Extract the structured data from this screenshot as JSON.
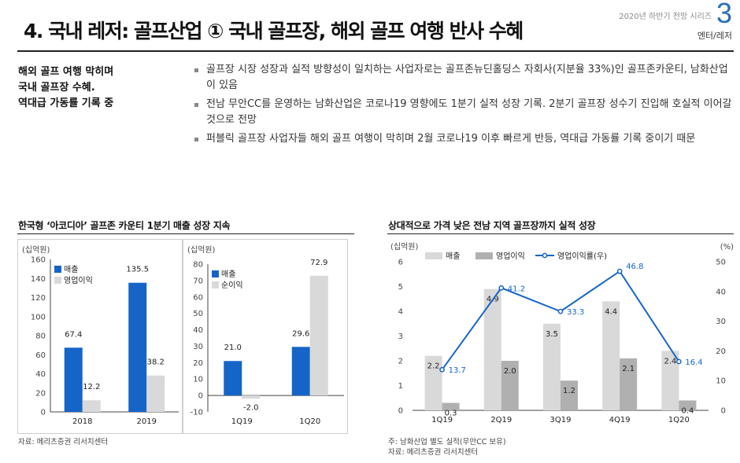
{
  "header": {
    "title": "4. 국내 레저: 골프산업 ① 국내 골프장, 해외 골프 여행 반사 수혜",
    "series": "2020년 하반기 전망 시리즈",
    "page_number": "3",
    "section": "엔터/레저"
  },
  "summary": {
    "lines": [
      "해외 골프 여행 막히며",
      "국내 골프장 수혜.",
      "역대급 가동률 기록 중"
    ]
  },
  "bullets": [
    "골프장 시장 성장과 실적 방향성이 일치하는 사업자로는 골프존뉴딘홀딩스 자회사(지분율 33%)인 골프존카운티, 남화산업이 있음",
    "전남 무안CC를 운영하는 남화산업은 코로나19 영향에도 1분기 실적 성장 기록. 2분기 골프장 성수기 진입해 호실적 이어갈 것으로 전망",
    "퍼블릭 골프장 사업자들 해외 골프 여행이 막히며 2월 코로나19 이후 빠르게 반등, 역대급 가동률 기록 중이기 때문"
  ],
  "left_chart": {
    "title": "한국형 ‘아코디아’ 골프존 카운티 1분기 매출 성장 지속",
    "source": "자료: 메리츠증권 리서치센터"
  },
  "right_chart": {
    "title": "상대적으로 가격 낮은 전남 지역 골프장까지 실적 성장",
    "note": "주: 남화산업 별도 실적(무안CC 보유)",
    "source": "자료: 메리츠증권 리서치센터"
  },
  "colors": {
    "blue": "#1565c8",
    "lightgray": "#d9d9d9",
    "darkgray": "#b0b0b0",
    "accent": "#2a6fb8"
  },
  "chart_data": [
    {
      "type": "bar",
      "ylabel": "(십억원)",
      "ylim": [
        0,
        160
      ],
      "yticks": [
        0,
        20,
        40,
        60,
        80,
        100,
        120,
        140,
        160
      ],
      "categories": [
        "2018",
        "2019"
      ],
      "legend_position": "top-left",
      "series": [
        {
          "name": "매출",
          "values": [
            67.4,
            135.5
          ],
          "labels": [
            "67.4",
            "135.5"
          ]
        },
        {
          "name": "영업이익",
          "values": [
            12.2,
            38.2
          ],
          "labels": [
            "12.2",
            "38.2"
          ]
        }
      ]
    },
    {
      "type": "bar",
      "ylabel": "(십억원)",
      "ylim": [
        -10,
        80
      ],
      "yticks": [
        -10,
        0,
        10,
        20,
        30,
        40,
        50,
        60,
        70,
        80
      ],
      "categories": [
        "1Q19",
        "1Q20"
      ],
      "legend_position": "top-left",
      "series": [
        {
          "name": "매출",
          "values": [
            21.0,
            29.6
          ],
          "labels": [
            "21.0",
            "29.6"
          ]
        },
        {
          "name": "순이익",
          "values": [
            -2.0,
            72.9
          ],
          "labels": [
            "-2.0",
            "72.9"
          ]
        }
      ]
    },
    {
      "type": "bar",
      "ylabel": "(십억원)",
      "y2label": "(%)",
      "ylim": [
        0,
        6
      ],
      "y2lim": [
        0,
        50
      ],
      "yticks": [
        0,
        1,
        2,
        3,
        4,
        5,
        6
      ],
      "y2ticks": [
        0,
        10,
        20,
        30,
        40,
        50
      ],
      "categories": [
        "1Q19",
        "2Q19",
        "3Q19",
        "4Q19",
        "1Q20"
      ],
      "legend_position": "top",
      "series": [
        {
          "name": "매출",
          "type": "bar",
          "values": [
            2.2,
            4.9,
            3.5,
            4.4,
            2.4
          ],
          "labels": [
            "2.2",
            "4.9",
            "3.5",
            "4.4",
            "2.4"
          ]
        },
        {
          "name": "영업이익",
          "type": "bar",
          "values": [
            0.3,
            2.0,
            1.2,
            2.1,
            0.4
          ],
          "labels": [
            "0.3",
            "2.0",
            "1.2",
            "2.1",
            "0.4"
          ]
        },
        {
          "name": "영업이익률(우)",
          "type": "line",
          "axis": "right",
          "values": [
            13.7,
            41.2,
            33.3,
            46.8,
            16.4
          ],
          "labels": [
            "13.7",
            "41.2",
            "33.3",
            "46.8",
            "16.4"
          ]
        }
      ]
    }
  ]
}
